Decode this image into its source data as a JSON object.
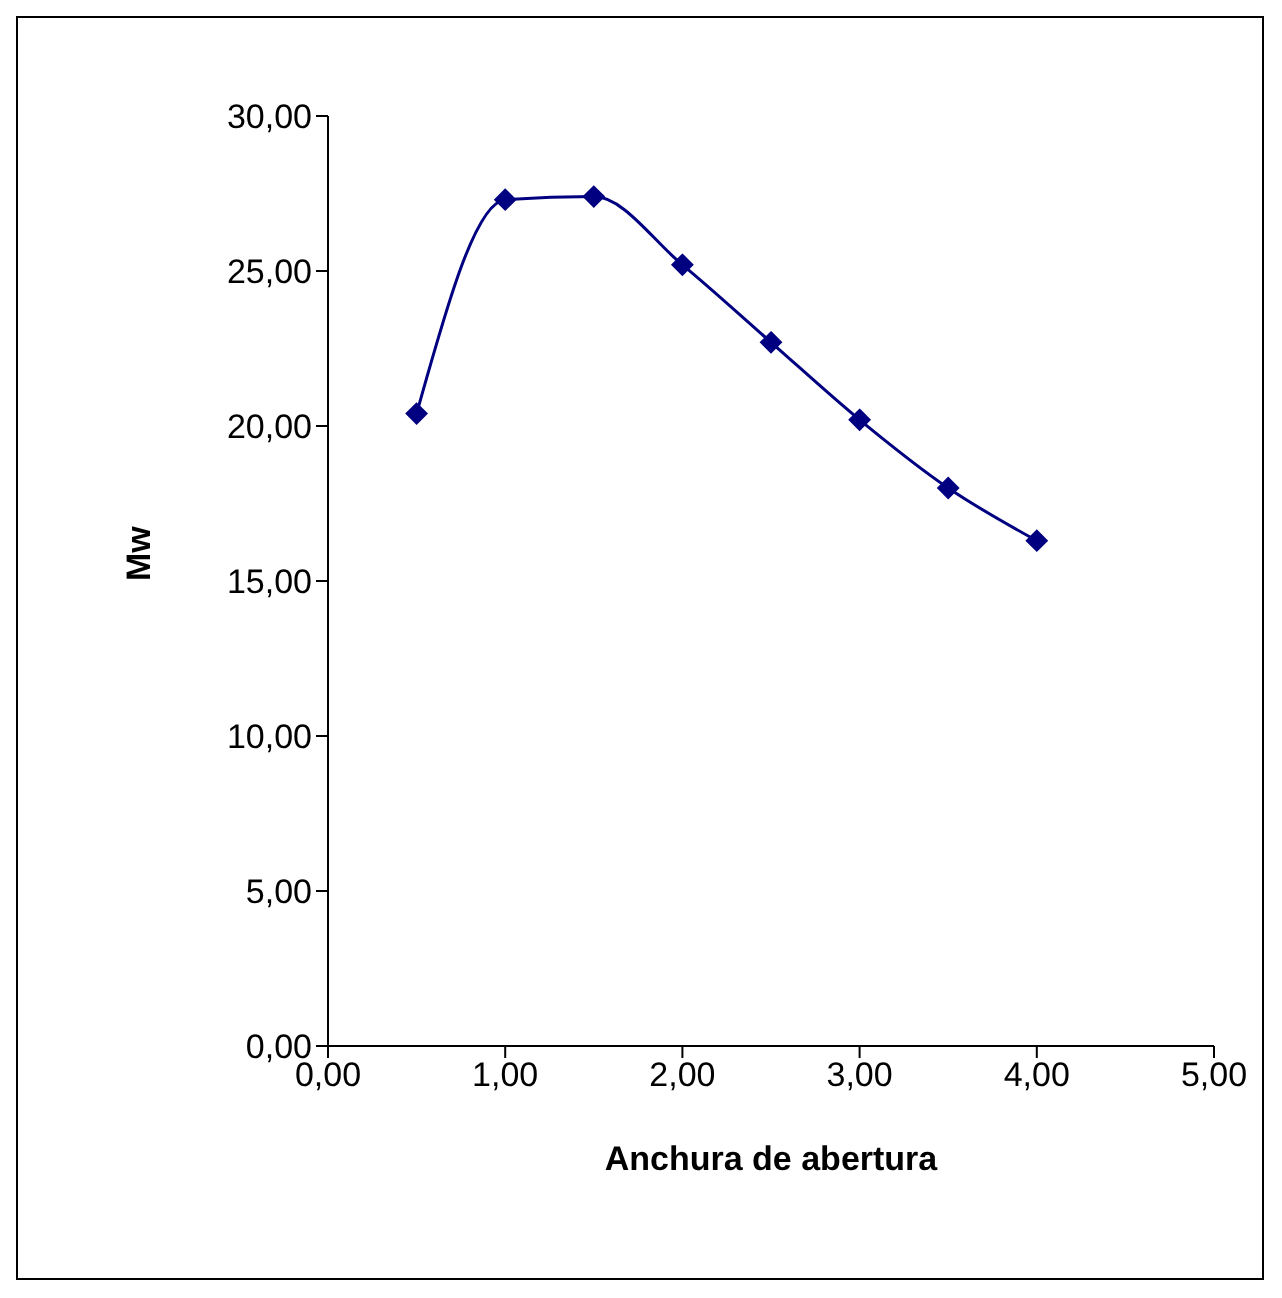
{
  "chart_data": {
    "type": "line",
    "xlabel": "Anchura de abertura",
    "ylabel": "Mw",
    "x": [
      0.5,
      1,
      1.5,
      2,
      2.5,
      3,
      3.5,
      4
    ],
    "series": [
      {
        "color": "#000080",
        "values": [
          20.4,
          27.3,
          27.4,
          25.2,
          22.7,
          20.2,
          18.0,
          16.3
        ]
      }
    ],
    "xlim": [
      0,
      5
    ],
    "xticks": [
      {
        "value": 0,
        "label": "0,00"
      },
      {
        "value": 1,
        "label": "1,00"
      },
      {
        "value": 2,
        "label": "2,00"
      },
      {
        "value": 3,
        "label": "3,00"
      },
      {
        "value": 4,
        "label": "4,00"
      },
      {
        "value": 5,
        "label": "5,00"
      }
    ],
    "ylim": [
      0,
      30
    ],
    "yticks": [
      {
        "value": 0,
        "label": "0,00"
      },
      {
        "value": 5,
        "label": "5,00"
      },
      {
        "value": 10,
        "label": "10,00"
      },
      {
        "value": 15,
        "label": "15,00"
      },
      {
        "value": 20,
        "label": "20,00"
      },
      {
        "value": 25,
        "label": "25,00"
      },
      {
        "value": 30,
        "label": "30,00"
      }
    ],
    "grid": false,
    "legend": false,
    "marker": "diamond",
    "line_style": "solid"
  }
}
